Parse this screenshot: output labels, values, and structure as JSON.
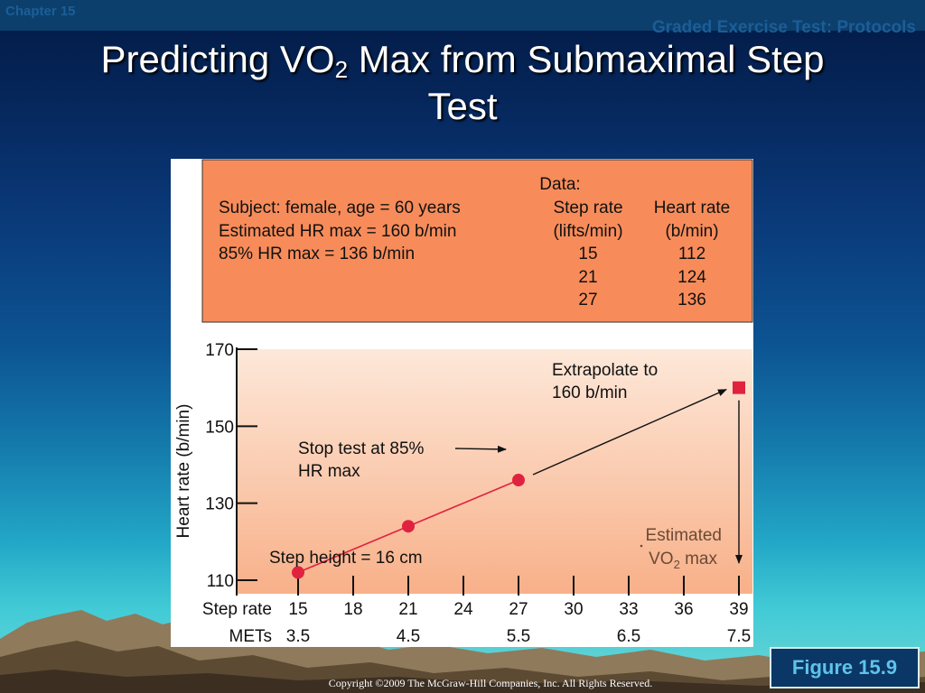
{
  "header": {
    "chapter": "Chapter 15",
    "section": "Graded Exercise Test: Protocols",
    "title_part1": "Predicting VO",
    "title_sub": "2",
    "title_part2": " Max from Submaximal Step",
    "title_line2": "Test"
  },
  "data_box": {
    "data_heading": "Data:",
    "subject_lines": [
      "Subject:  female, age = 60 years",
      "Estimated HR max = 160 b/min",
      "85% HR max = 136 b/min"
    ],
    "column_headers": [
      [
        "Step rate",
        "(lifts/min)"
      ],
      [
        "Heart rate",
        "(b/min)"
      ]
    ],
    "rows": [
      [
        "15",
        "112"
      ],
      [
        "21",
        "124"
      ],
      [
        "27",
        "136"
      ]
    ]
  },
  "chart_data": {
    "type": "line",
    "ylabel": "Heart rate (b/min)",
    "ylim": [
      106,
      170
    ],
    "yticks": [
      110,
      130,
      150,
      170
    ],
    "x_row_label": "Step rate",
    "xticks": [
      15,
      18,
      21,
      24,
      27,
      30,
      33,
      36,
      39
    ],
    "xlim": [
      15,
      39
    ],
    "mets_label": "METs",
    "mets": [
      {
        "x": 15,
        "label": "3.5"
      },
      {
        "x": 21,
        "label": "4.5"
      },
      {
        "x": 27,
        "label": "5.5"
      },
      {
        "x": 33,
        "label": "6.5"
      },
      {
        "x": 39,
        "label": "7.5"
      }
    ],
    "series": [
      {
        "points": [
          {
            "x": 15,
            "y": 112
          },
          {
            "x": 21,
            "y": 124
          },
          {
            "x": 27,
            "y": 136
          }
        ],
        "color": "#e0223f"
      }
    ],
    "extrapolated_point": {
      "x": 39,
      "y": 160
    },
    "annotations": {
      "stop_line1": "Stop test at 85%",
      "stop_line2": "HR max",
      "extrap_line1": "Extrapolate to",
      "extrap_line2": "160 b/min",
      "estimated_line1": "Estimated",
      "estimated_vo2": "VO",
      "estimated_sub": "2",
      "estimated_suffix": " max",
      "step_height": "Step height = 16 cm"
    }
  },
  "figure_label": "Figure 15.9",
  "copyright": "Copyright ©2009 The McGraw-Hill Companies, Inc. All Rights Reserved."
}
